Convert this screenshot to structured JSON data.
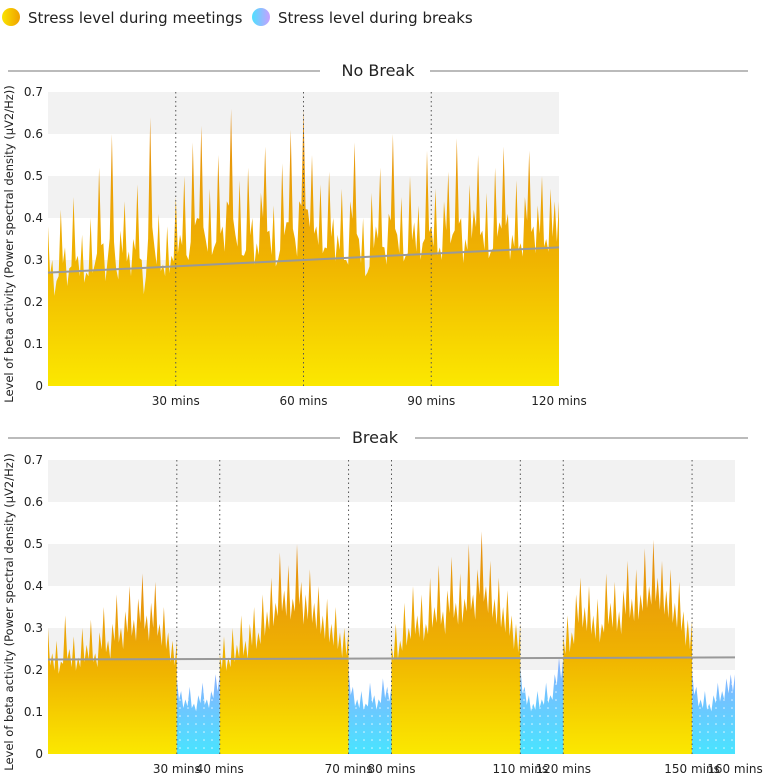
{
  "legend": [
    {
      "label": "Stress level during meetings",
      "colors": [
        "#f9e400",
        "#f0a000"
      ]
    },
    {
      "label": "Stress level during breaks",
      "colors": [
        "#4de0ff",
        "#c8a0ff"
      ]
    }
  ],
  "chart_data": [
    {
      "type": "area",
      "title": "No Break",
      "ylabel": "Level of beta activity (Power spectral density (μV2/Hz))",
      "ylim": [
        0,
        0.7
      ],
      "xlim": [
        0,
        120
      ],
      "yticks": [
        "0",
        "0.1",
        "0.2",
        "0.3",
        "0.4",
        "0.5",
        "0.6",
        "0.7"
      ],
      "xticks": [
        {
          "value": 30,
          "label": "30 mins"
        },
        {
          "value": 60,
          "label": "60 mins"
        },
        {
          "value": 90,
          "label": "90 mins"
        },
        {
          "value": 120,
          "label": "120 mins"
        }
      ],
      "dividers": [
        30,
        60,
        90
      ],
      "grid_bands": [
        [
          0.2,
          0.3
        ],
        [
          0.4,
          0.5
        ],
        [
          0.6,
          0.7
        ]
      ],
      "trend": {
        "from": [
          0,
          0.27
        ],
        "to": [
          120,
          0.33
        ],
        "color": "#999999"
      },
      "series": [
        {
          "kind": "meeting",
          "segments": [
            {
              "start": 0,
              "values": [
                0.38,
                0.3,
                0.25,
                0.42,
                0.33,
                0.28,
                0.45,
                0.31,
                0.36,
                0.27,
                0.4,
                0.29,
                0.52,
                0.34,
                0.3,
                0.6,
                0.28,
                0.37,
                0.44,
                0.32,
                0.35,
                0.48,
                0.3,
                0.26,
                0.64,
                0.33,
                0.41,
                0.29,
                0.38,
                0.31,
                0.45,
                0.36,
                0.5,
                0.3,
                0.58,
                0.4,
                0.62,
                0.35,
                0.47,
                0.33,
                0.55,
                0.38,
                0.44,
                0.66,
                0.36,
                0.49,
                0.31,
                0.52,
                0.4,
                0.34,
                0.46,
                0.57,
                0.37,
                0.43,
                0.3,
                0.53,
                0.39,
                0.61,
                0.35,
                0.44,
                0.66,
                0.42,
                0.55,
                0.38,
                0.48,
                0.33,
                0.51,
                0.4,
                0.36,
                0.47,
                0.3,
                0.44,
                0.58,
                0.35,
                0.4,
                0.27,
                0.46,
                0.38,
                0.52,
                0.33,
                0.41,
                0.6,
                0.36,
                0.45,
                0.31,
                0.5,
                0.39,
                0.43,
                0.34,
                0.56,
                0.38,
                0.47,
                0.33,
                0.44,
                0.51,
                0.36,
                0.59,
                0.4,
                0.35,
                0.48,
                0.42,
                0.55,
                0.37,
                0.46,
                0.32,
                0.52,
                0.39,
                0.57,
                0.41,
                0.36,
                0.49,
                0.34,
                0.45,
                0.56,
                0.38,
                0.43,
                0.5,
                0.35,
                0.47,
                0.44,
                0.44
              ]
            }
          ]
        }
      ]
    },
    {
      "type": "area",
      "title": "Break",
      "ylabel": "Level of beta activity (Power spectral density (μV2/Hz))",
      "ylim": [
        0,
        0.7
      ],
      "xlim": [
        0,
        160
      ],
      "yticks": [
        "0",
        "0.1",
        "0.2",
        "0.3",
        "0.4",
        "0.5",
        "0.6",
        "0.7"
      ],
      "xticks": [
        {
          "value": 30,
          "label": "30 mins"
        },
        {
          "value": 40,
          "label": "40 mins"
        },
        {
          "value": 70,
          "label": "70 mins"
        },
        {
          "value": 80,
          "label": "80 mins"
        },
        {
          "value": 110,
          "label": "110 mins"
        },
        {
          "value": 120,
          "label": "120 mins"
        },
        {
          "value": 150,
          "label": "150 mins"
        },
        {
          "value": 160,
          "label": "160 mins"
        }
      ],
      "dividers": [
        30,
        40,
        70,
        80,
        110,
        120,
        150
      ],
      "grid_bands": [
        [
          0.2,
          0.3
        ],
        [
          0.4,
          0.5
        ],
        [
          0.6,
          0.7
        ]
      ],
      "trend": {
        "from": [
          0,
          0.225
        ],
        "to": [
          160,
          0.23
        ],
        "color": "#999999"
      },
      "series": [
        {
          "kind": "meeting",
          "segments": [
            {
              "start": 0,
              "values": [
                0.3,
                0.24,
                0.27,
                0.22,
                0.33,
                0.25,
                0.28,
                0.23,
                0.3,
                0.26,
                0.32,
                0.24,
                0.29,
                0.35,
                0.27,
                0.31,
                0.38,
                0.3,
                0.34,
                0.4,
                0.32,
                0.37,
                0.43,
                0.33,
                0.36,
                0.41,
                0.31,
                0.35,
                0.29,
                0.27,
                0.27
              ]
            },
            {
              "start": 40,
              "values": [
                0.24,
                0.28,
                0.23,
                0.3,
                0.26,
                0.33,
                0.27,
                0.31,
                0.35,
                0.29,
                0.38,
                0.34,
                0.42,
                0.36,
                0.48,
                0.39,
                0.45,
                0.37,
                0.5,
                0.41,
                0.38,
                0.44,
                0.36,
                0.4,
                0.33,
                0.37,
                0.31,
                0.35,
                0.29,
                0.3,
                0.3
              ]
            },
            {
              "start": 80,
              "values": [
                0.26,
                0.31,
                0.27,
                0.36,
                0.3,
                0.4,
                0.33,
                0.38,
                0.31,
                0.42,
                0.35,
                0.45,
                0.34,
                0.39,
                0.47,
                0.36,
                0.43,
                0.37,
                0.5,
                0.38,
                0.44,
                0.53,
                0.4,
                0.46,
                0.37,
                0.42,
                0.35,
                0.39,
                0.33,
                0.31,
                0.31
              ]
            },
            {
              "start": 120,
              "values": [
                0.28,
                0.33,
                0.29,
                0.38,
                0.42,
                0.35,
                0.4,
                0.33,
                0.37,
                0.31,
                0.43,
                0.36,
                0.41,
                0.34,
                0.39,
                0.46,
                0.37,
                0.44,
                0.38,
                0.49,
                0.4,
                0.51,
                0.42,
                0.46,
                0.39,
                0.44,
                0.36,
                0.41,
                0.34,
                0.32,
                0.32
              ]
            }
          ]
        },
        {
          "kind": "break",
          "segments": [
            {
              "start": 30,
              "values": [
                0.18,
                0.15,
                0.13,
                0.16,
                0.12,
                0.14,
                0.17,
                0.13,
                0.15,
                0.19,
                0.19
              ]
            },
            {
              "start": 70,
              "values": [
                0.2,
                0.16,
                0.13,
                0.15,
                0.12,
                0.17,
                0.14,
                0.13,
                0.18,
                0.16,
                0.16
              ]
            },
            {
              "start": 110,
              "values": [
                0.21,
                0.16,
                0.14,
                0.12,
                0.15,
                0.13,
                0.17,
                0.14,
                0.19,
                0.23,
                0.23
              ]
            },
            {
              "start": 150,
              "values": [
                0.2,
                0.16,
                0.13,
                0.15,
                0.12,
                0.14,
                0.17,
                0.15,
                0.18,
                0.19,
                0.19
              ]
            }
          ]
        }
      ]
    }
  ]
}
